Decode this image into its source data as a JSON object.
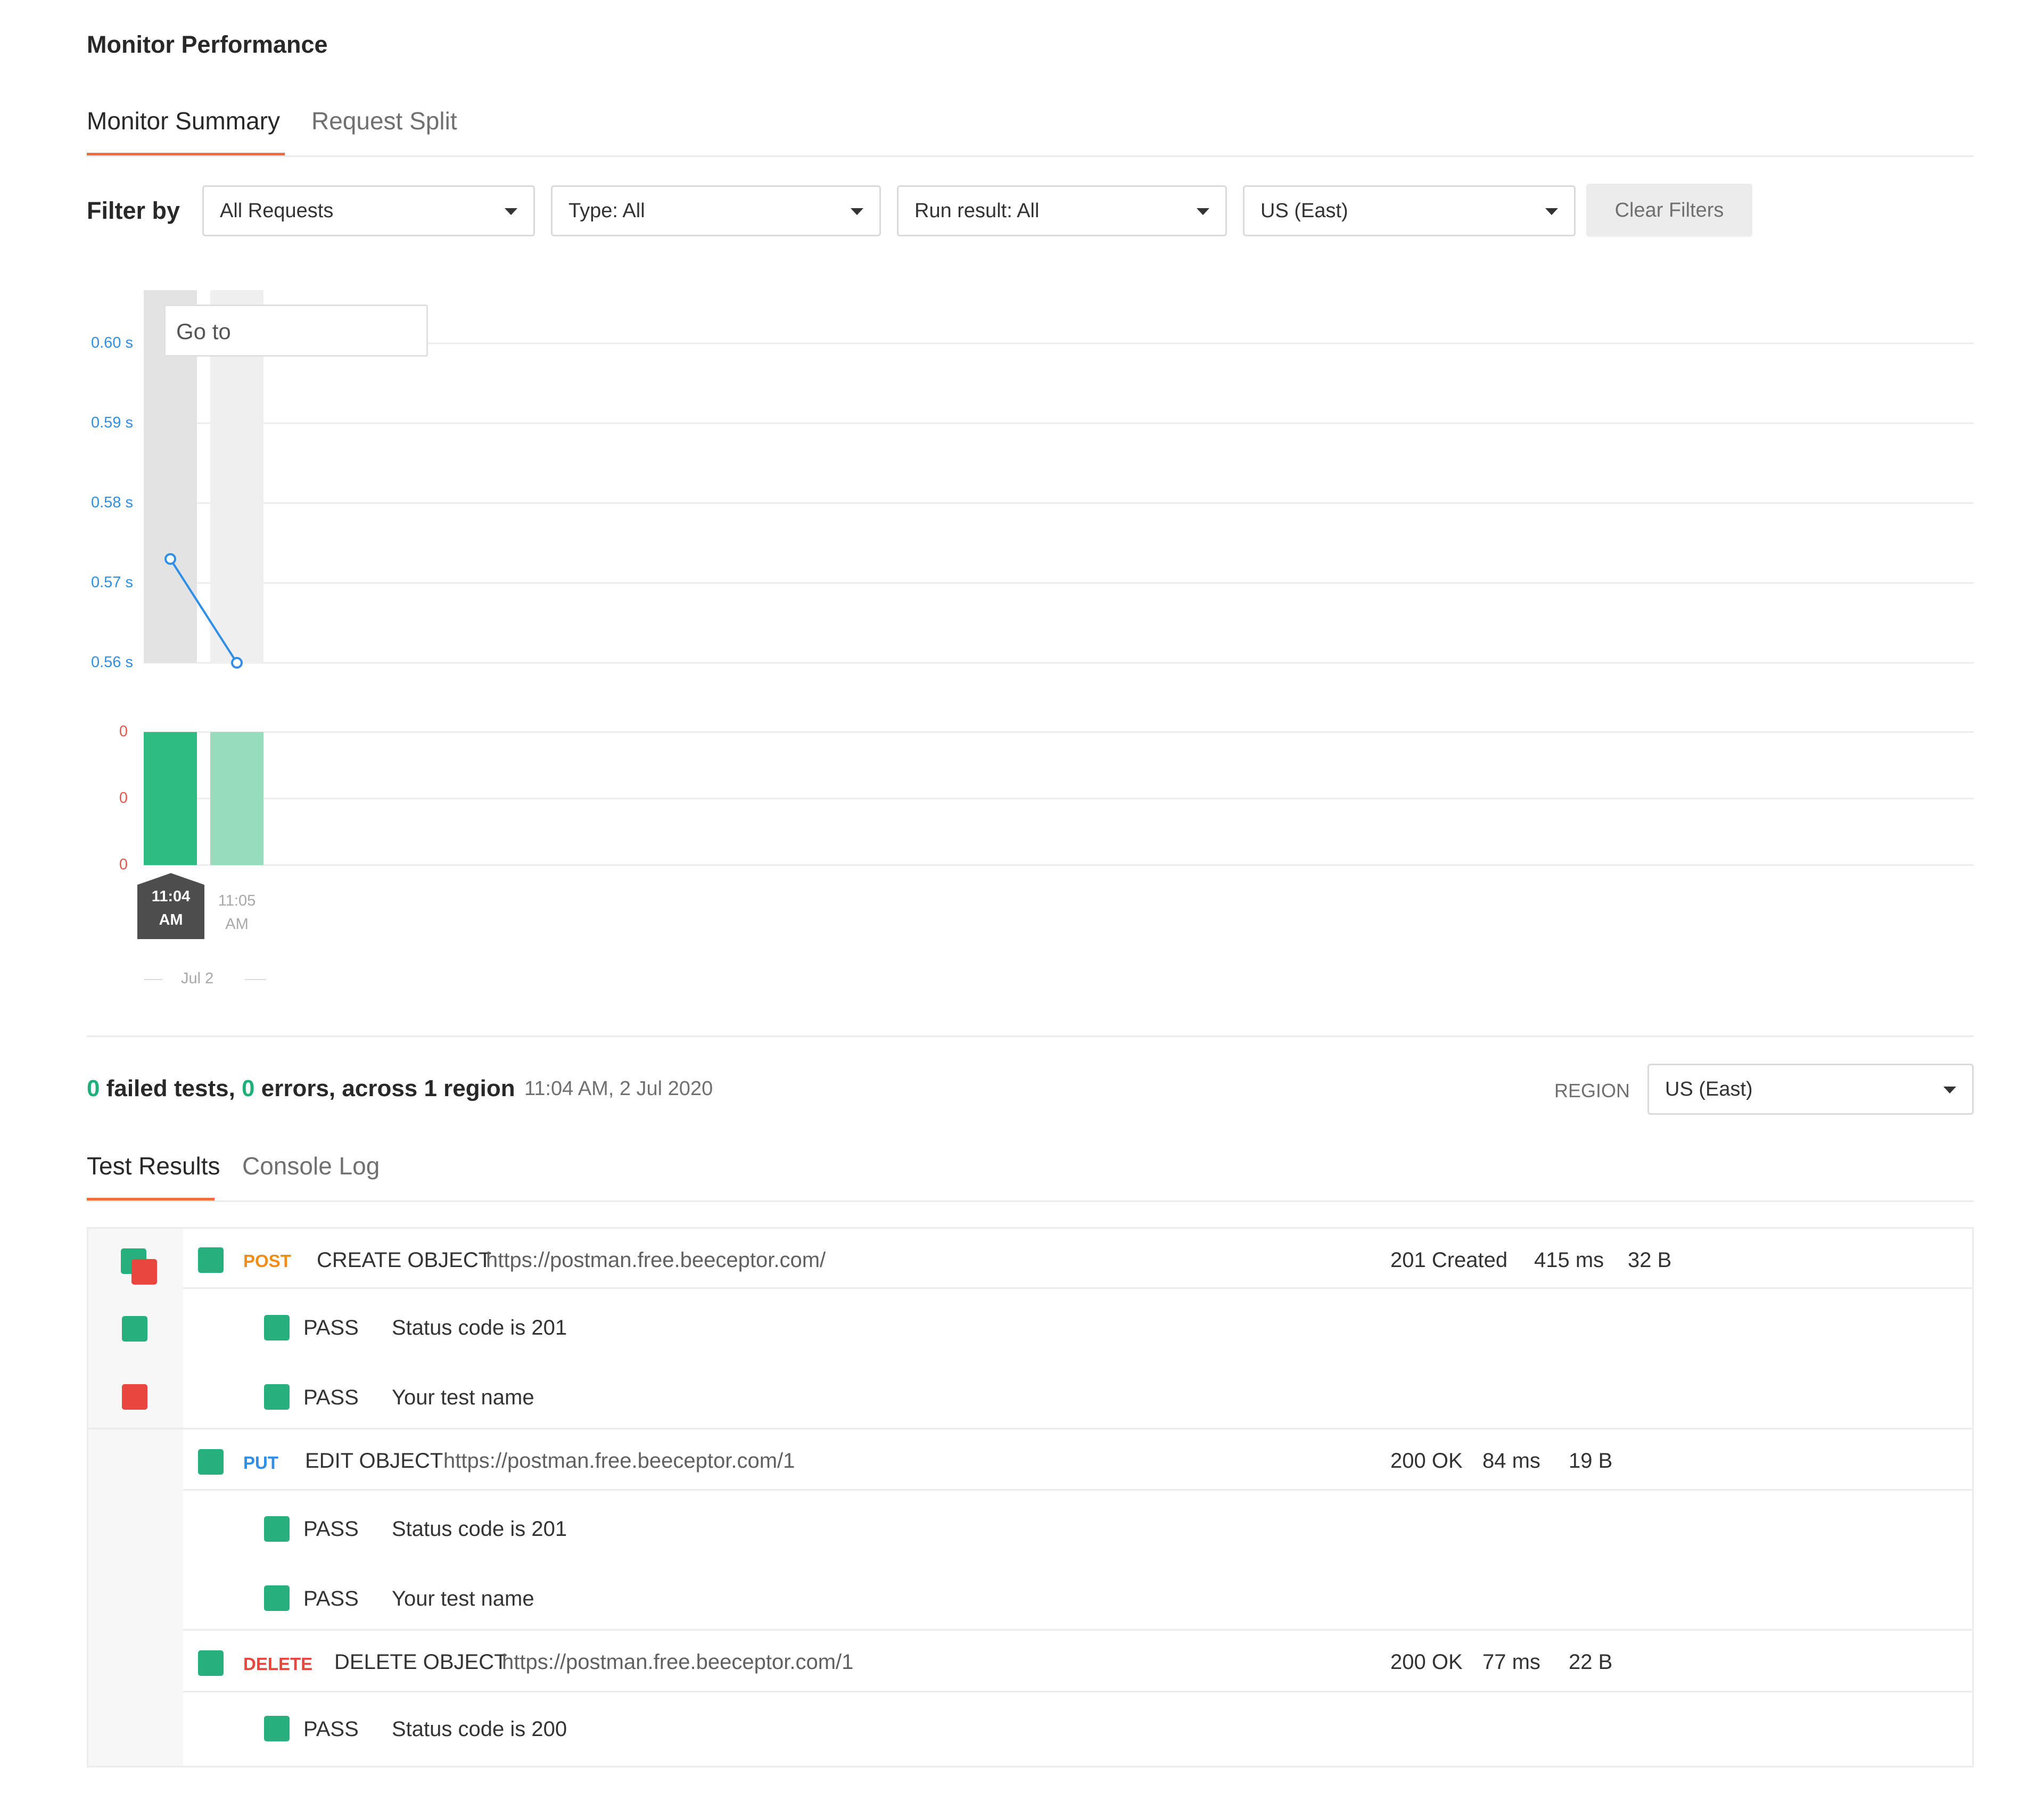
{
  "page": {
    "title": "Monitor Performance"
  },
  "top_tabs": [
    {
      "label": "Monitor Summary",
      "active": true
    },
    {
      "label": "Request Split",
      "active": false
    }
  ],
  "filters": {
    "label": "Filter by",
    "requests": "All Requests",
    "type": "Type: All",
    "run_result": "Run result: All",
    "region": "US (East)",
    "clear_label": "Clear Filters"
  },
  "goto": {
    "placeholder": "Go to"
  },
  "chart_data": [
    {
      "type": "line",
      "x": [
        "11:04 AM",
        "11:05 AM"
      ],
      "series": [
        {
          "values": [
            0.573,
            0.56
          ]
        }
      ],
      "y_ticks": [
        "0.60 s",
        "0.59 s",
        "0.58 s",
        "0.57 s",
        "0.56 s"
      ],
      "ylim": [
        0.56,
        0.6
      ],
      "grid": true,
      "title": "",
      "xlabel": "",
      "ylabel": ""
    },
    {
      "type": "bar",
      "categories": [
        "11:04 AM",
        "11:05 AM"
      ],
      "values": [
        1,
        1
      ],
      "y_ticks": [
        "0",
        "0",
        "0"
      ],
      "x_tick_lines": [
        [
          "11:04",
          "AM"
        ],
        [
          "11:05",
          "AM"
        ]
      ],
      "date_label": "Jul 2",
      "selected": "11:04 AM",
      "grid": true,
      "title": "",
      "xlabel": "",
      "ylabel": ""
    }
  ],
  "summary": {
    "failed_count": "0",
    "failed_label": " failed tests, ",
    "errors_count": "0",
    "errors_label": " errors, across 1 region",
    "timestamp": "11:04 AM, 2 Jul 2020",
    "region_label": "REGION",
    "region_value": "US (East)"
  },
  "result_tabs": [
    {
      "label": "Test Results",
      "active": true
    },
    {
      "label": "Console Log",
      "active": false
    }
  ],
  "requests": [
    {
      "method": "POST",
      "name": "CREATE OBJECT",
      "url": "https://postman.free.beeceptor.com/",
      "status": "201 Created",
      "time": "415 ms",
      "size": "32 B",
      "tests": [
        {
          "result": "PASS",
          "name": "Status code is 201"
        },
        {
          "result": "PASS",
          "name": "Your test name"
        }
      ]
    },
    {
      "method": "PUT",
      "name": "EDIT OBJECT",
      "url": "https://postman.free.beeceptor.com/1",
      "status": "200 OK",
      "time": "84 ms",
      "size": "19 B",
      "tests": [
        {
          "result": "PASS",
          "name": "Status code is 201"
        },
        {
          "result": "PASS",
          "name": "Your test name"
        }
      ]
    },
    {
      "method": "DELETE",
      "name": "DELETE OBJECT",
      "url": "https://postman.free.beeceptor.com/1",
      "status": "200 OK",
      "time": "77 ms",
      "size": "22 B",
      "tests": [
        {
          "result": "PASS",
          "name": "Status code is 200"
        }
      ]
    }
  ],
  "colors": {
    "accent": "#f26b3a",
    "pass": "#27b07e",
    "fail": "#e9463f",
    "line": "#2f8ee5"
  }
}
